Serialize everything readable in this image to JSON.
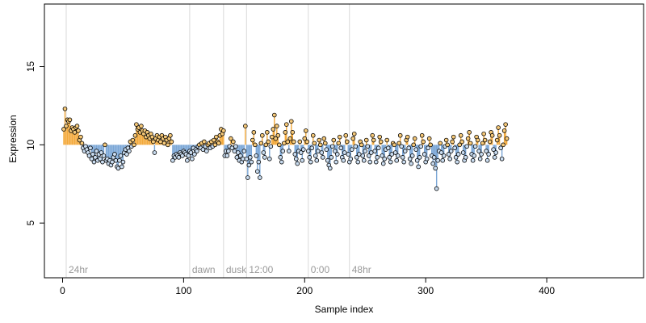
{
  "chart_data": {
    "type": "scatter",
    "xlabel": "Sample index",
    "ylabel": "Expression",
    "xlim": [
      -15,
      480
    ],
    "ylim": [
      1.5,
      19
    ],
    "baseline": 10,
    "x_ticks": [
      0,
      100,
      200,
      300,
      400
    ],
    "y_ticks": [
      5,
      10,
      15
    ],
    "colors": {
      "above": "#f3a93a",
      "below": "#7aa6d6",
      "point_fill_above": "#f5c878",
      "point_fill_below": "#c9dcf0",
      "point_stroke": "#000000",
      "marker_line": "#d9d9d9",
      "marker_text": "#9a9a9a"
    },
    "markers": [
      {
        "x": 3,
        "label": "24hr"
      },
      {
        "x": 105,
        "label": "dawn"
      },
      {
        "x": 133,
        "label": "dusk"
      },
      {
        "x": 152,
        "label": "12:00"
      },
      {
        "x": 203,
        "label": "0:00"
      },
      {
        "x": 237,
        "label": "48hr"
      }
    ],
    "y": [
      11.0,
      12.3,
      11.2,
      11.6,
      11.5,
      11.6,
      10.9,
      11.1,
      11.0,
      10.8,
      11.1,
      11.2,
      10.9,
      10.3,
      10.5,
      10.1,
      9.8,
      9.6,
      9.9,
      9.7,
      9.5,
      9.3,
      9.8,
      9.1,
      9.4,
      8.9,
      9.2,
      9.6,
      9.0,
      9.4,
      9.1,
      9.5,
      8.9,
      9.3,
      10.0,
      9.0,
      9.1,
      8.8,
      9.0,
      8.7,
      8.9,
      9.2,
      9.4,
      9.0,
      8.6,
      8.5,
      9.0,
      9.3,
      8.6,
      8.9,
      9.5,
      9.7,
      9.4,
      9.8,
      9.6,
      10.2,
      9.9,
      10.3,
      10.0,
      10.6,
      11.3,
      11.0,
      11.1,
      10.8,
      11.2,
      10.9,
      10.7,
      10.9,
      10.5,
      10.8,
      10.6,
      10.4,
      10.7,
      10.5,
      10.2,
      9.5,
      10.4,
      10.6,
      10.3,
      10.5,
      10.2,
      10.6,
      10.4,
      10.1,
      10.5,
      10.3,
      10.0,
      10.4,
      10.6,
      10.2,
      9.0,
      9.3,
      9.2,
      9.4,
      9.3,
      9.2,
      9.5,
      9.4,
      9.3,
      9.6,
      9.5,
      9.4,
      9.0,
      9.3,
      9.6,
      9.5,
      9.1,
      9.8,
      9.4,
      9.7,
      9.6,
      9.9,
      10.0,
      9.8,
      10.1,
      9.7,
      10.2,
      9.9,
      9.6,
      10.0,
      10.1,
      9.8,
      10.2,
      9.9,
      10.3,
      10.0,
      10.5,
      10.2,
      10.1,
      10.6,
      11.0,
      10.7,
      10.9,
      9.3,
      9.6,
      9.3,
      9.6,
      9.9,
      10.4,
      9.8,
      10.2,
      9.6,
      9.9,
      9.2,
      9.5,
      9.0,
      9.3,
      8.9,
      9.1,
      9.6,
      11.2,
      9.1,
      7.9,
      8.7,
      9.2,
      8.9,
      10.3,
      10.8,
      10.0,
      9.3,
      8.3,
      8.9,
      7.9,
      10.1,
      10.6,
      9.5,
      9.2,
      10.0,
      10.8,
      10.2,
      9.1,
      9.9,
      10.5,
      11.0,
      11.9,
      10.4,
      11.2,
      10.6,
      10.0,
      9.2,
      8.9,
      9.6,
      10.1,
      10.8,
      11.3,
      10.2,
      9.6,
      10.4,
      11.5,
      10.8,
      10.2,
      9.4,
      9.1,
      8.8,
      9.6,
      10.2,
      9.5,
      9.0,
      9.7,
      10.4,
      10.9,
      10.2,
      9.6,
      9.2,
      8.9,
      9.8,
      10.6,
      10.1,
      9.3,
      9.0,
      9.6,
      10.3,
      10.0,
      9.5,
      9.2,
      10.4,
      10.1,
      9.7,
      9.0,
      8.7,
      8.5,
      9.2,
      9.9,
      10.3,
      9.6,
      8.9,
      9.4,
      10.1,
      10.5,
      9.8,
      9.2,
      9.0,
      9.5,
      10.6,
      10.2,
      9.4,
      8.9,
      9.1,
      9.7,
      10.4,
      10.7,
      9.9,
      9.2,
      8.9,
      9.4,
      10.2,
      10.0,
      9.3,
      9.0,
      9.6,
      10.3,
      9.9,
      9.3,
      8.9,
      9.5,
      10.6,
      10.3,
      9.6,
      8.9,
      9.2,
      9.8,
      10.5,
      10.2,
      9.3,
      8.8,
      9.1,
      9.7,
      10.3,
      9.8,
      9.2,
      8.9,
      9.4,
      10.1,
      10.0,
      9.5,
      9.0,
      9.3,
      10.1,
      10.6,
      9.9,
      9.2,
      8.9,
      9.6,
      10.3,
      10.5,
      9.8,
      9.1,
      8.8,
      9.3,
      10.0,
      10.4,
      9.7,
      9.0,
      8.6,
      9.2,
      9.9,
      10.6,
      10.2,
      9.4,
      8.9,
      9.1,
      9.8,
      10.4,
      10.0,
      9.3,
      8.8,
      9.2,
      8.5,
      7.2,
      9.0,
      9.6,
      10.1,
      9.5,
      9.0,
      9.3,
      9.9,
      10.3,
      10.0,
      9.4,
      9.1,
      9.6,
      10.2,
      10.5,
      9.8,
      9.2,
      8.9,
      9.4,
      10.0,
      10.6,
      10.2,
      9.5,
      9.0,
      9.2,
      9.9,
      10.4,
      10.8,
      10.1,
      9.4,
      9.0,
      9.3,
      9.9,
      10.5,
      10.3,
      9.6,
      9.1,
      9.4,
      10.1,
      10.7,
      10.3,
      9.6,
      9.0,
      9.4,
      10.2,
      10.8,
      10.6,
      9.7,
      9.2,
      9.5,
      10.3,
      11.1,
      10.6,
      9.8,
      9.1,
      10.0,
      10.9,
      11.3,
      10.4
    ]
  }
}
